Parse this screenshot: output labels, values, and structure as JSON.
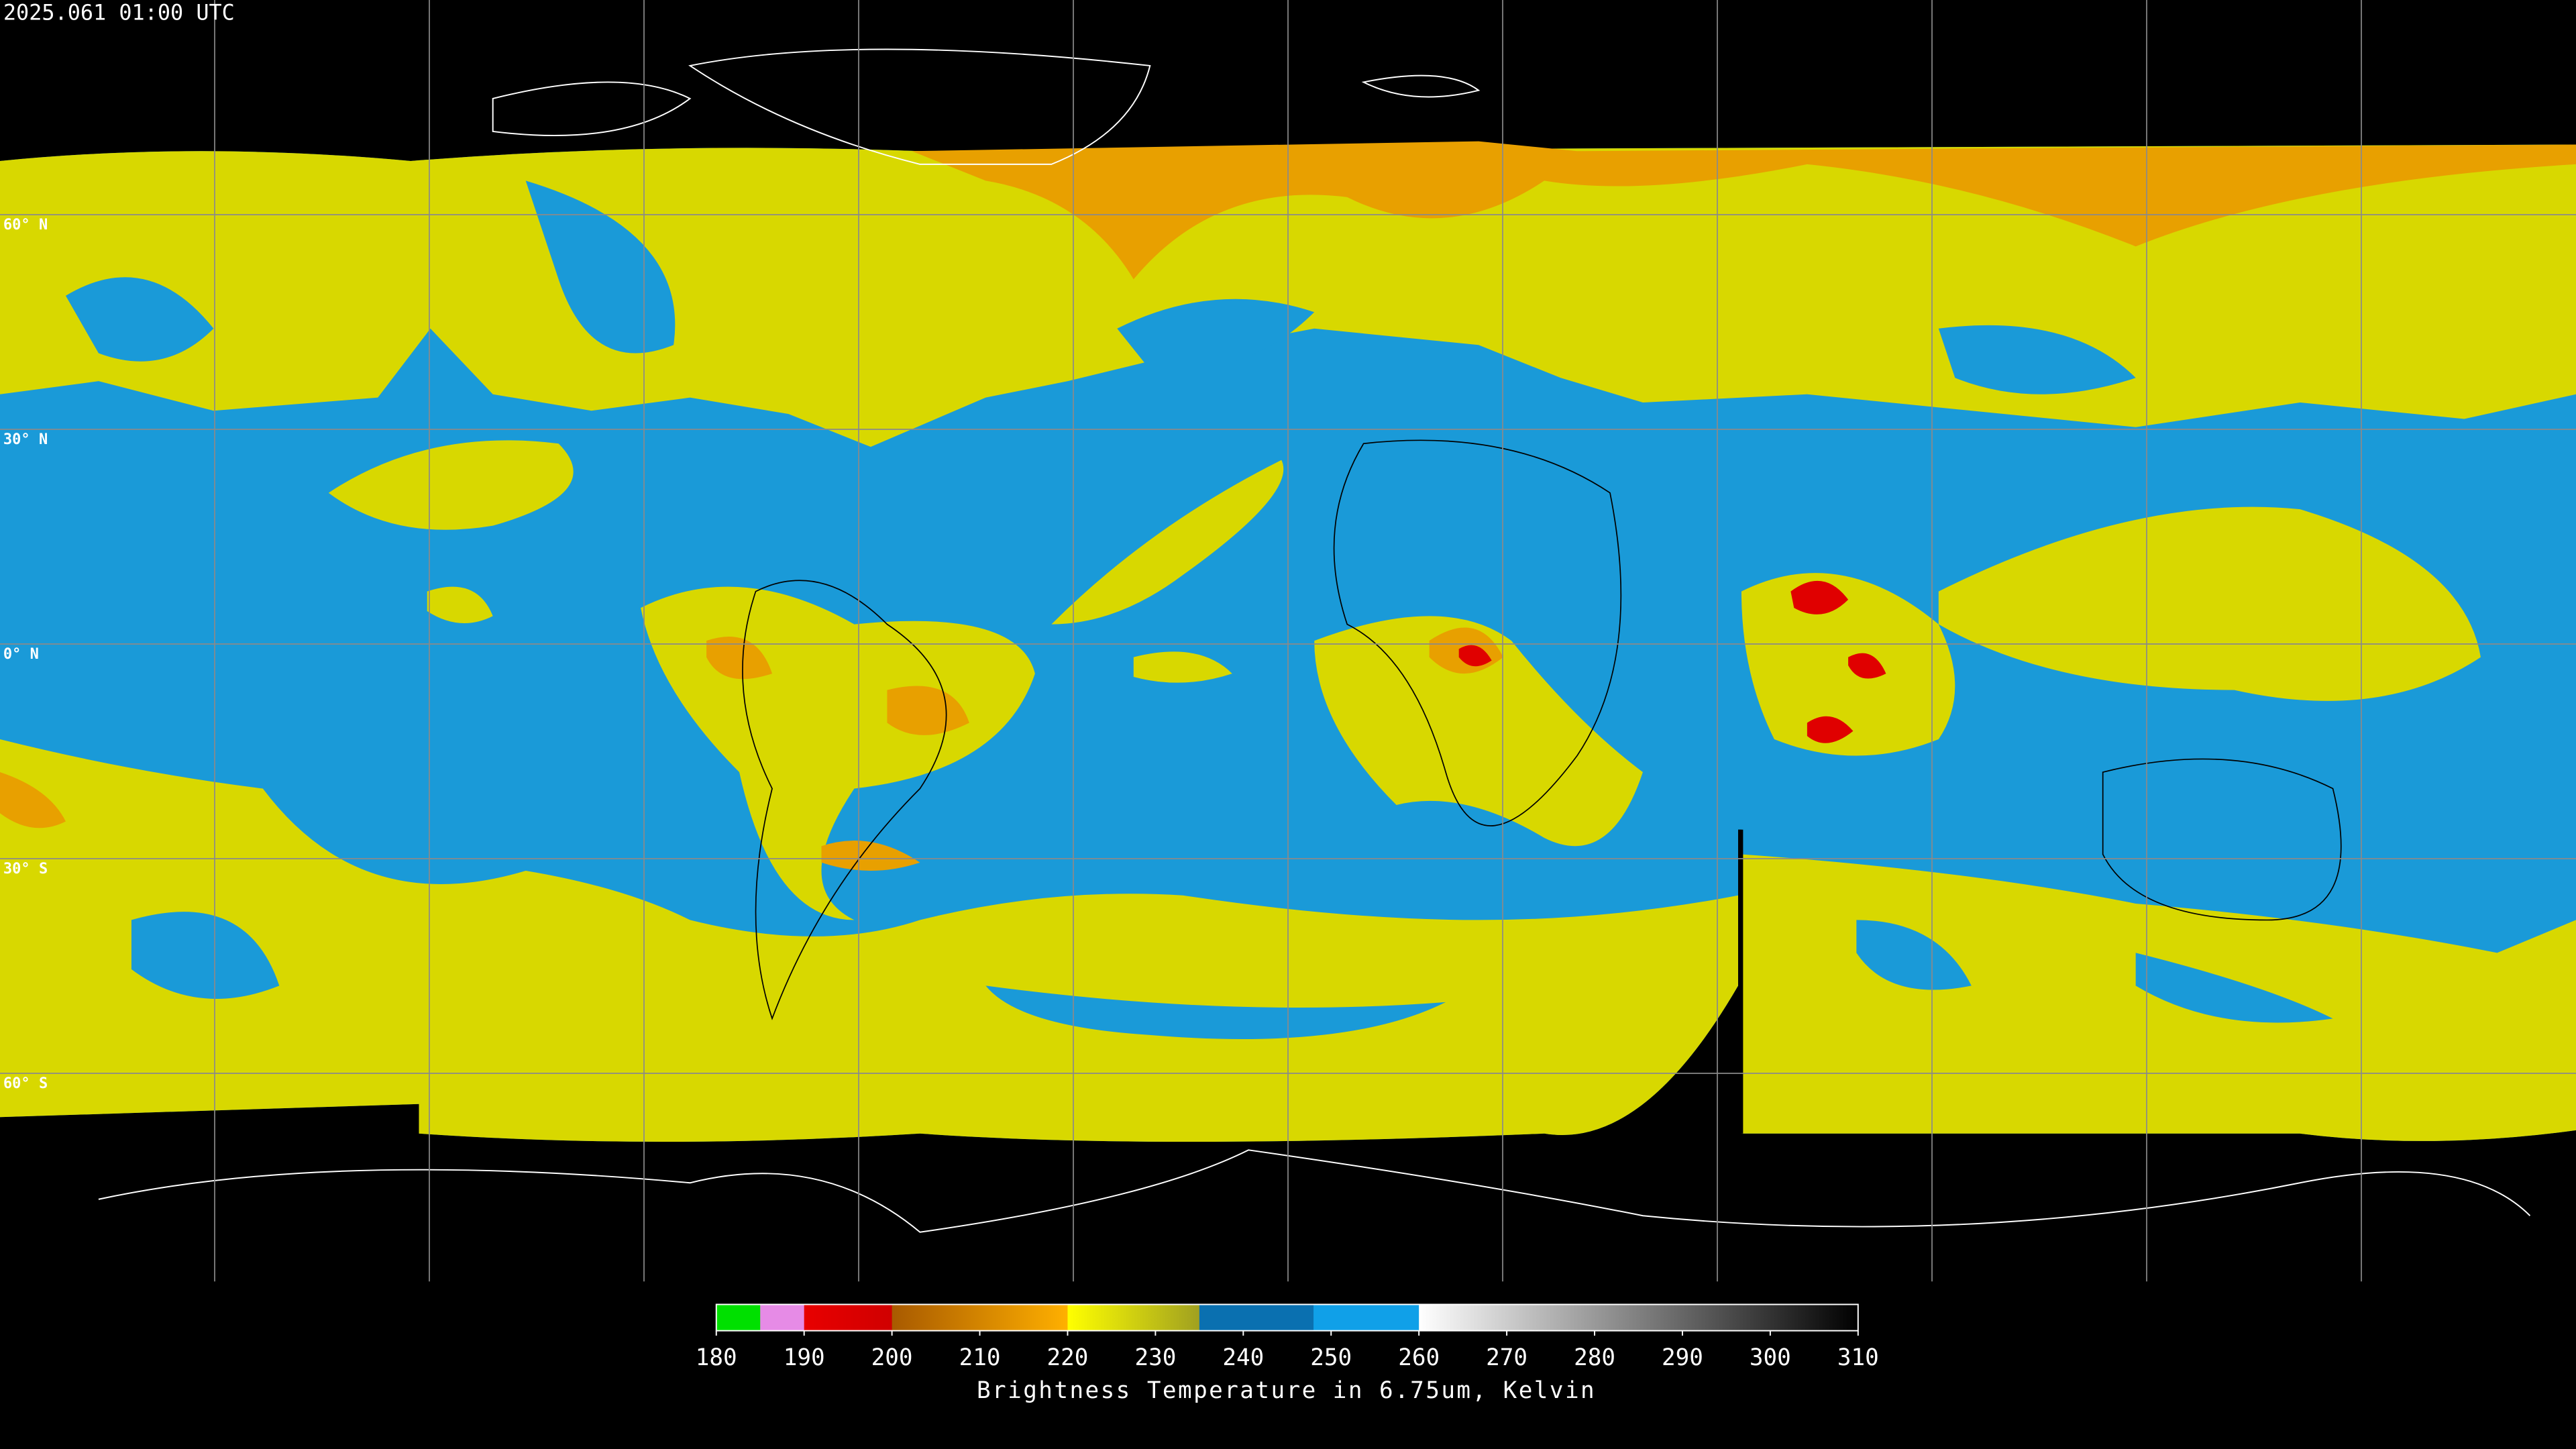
{
  "timestamp": "2025.061 01:00 UTC",
  "lat_labels": [
    "60° N",
    "30° N",
    "0° N",
    "30° S",
    "60° S"
  ],
  "colorbar": {
    "label": "Brightness Temperature in 6.75um, Kelvin",
    "range": [
      180,
      310
    ],
    "ticks": [
      180,
      190,
      200,
      210,
      220,
      230,
      240,
      250,
      260,
      270,
      280,
      290,
      300,
      310
    ],
    "segments": [
      {
        "from": 180,
        "to": 185,
        "colors": [
          "#00e000",
          "#00e000"
        ]
      },
      {
        "from": 185,
        "to": 190,
        "colors": [
          "#e68be6",
          "#e68be6"
        ]
      },
      {
        "from": 190,
        "to": 200,
        "colors": [
          "#e80000",
          "#d00000"
        ]
      },
      {
        "from": 200,
        "to": 220,
        "colors": [
          "#a85a00",
          "#ffb000"
        ]
      },
      {
        "from": 220,
        "to": 235,
        "colors": [
          "#ffff00",
          "#a0a020"
        ]
      },
      {
        "from": 235,
        "to": 248,
        "colors": [
          "#0a70b0",
          "#0a70b0"
        ]
      },
      {
        "from": 248,
        "to": 260,
        "colors": [
          "#10a0e8",
          "#10a0e8"
        ]
      },
      {
        "from": 260,
        "to": 310,
        "colors": [
          "#ffffff",
          "#000000"
        ]
      }
    ]
  }
}
